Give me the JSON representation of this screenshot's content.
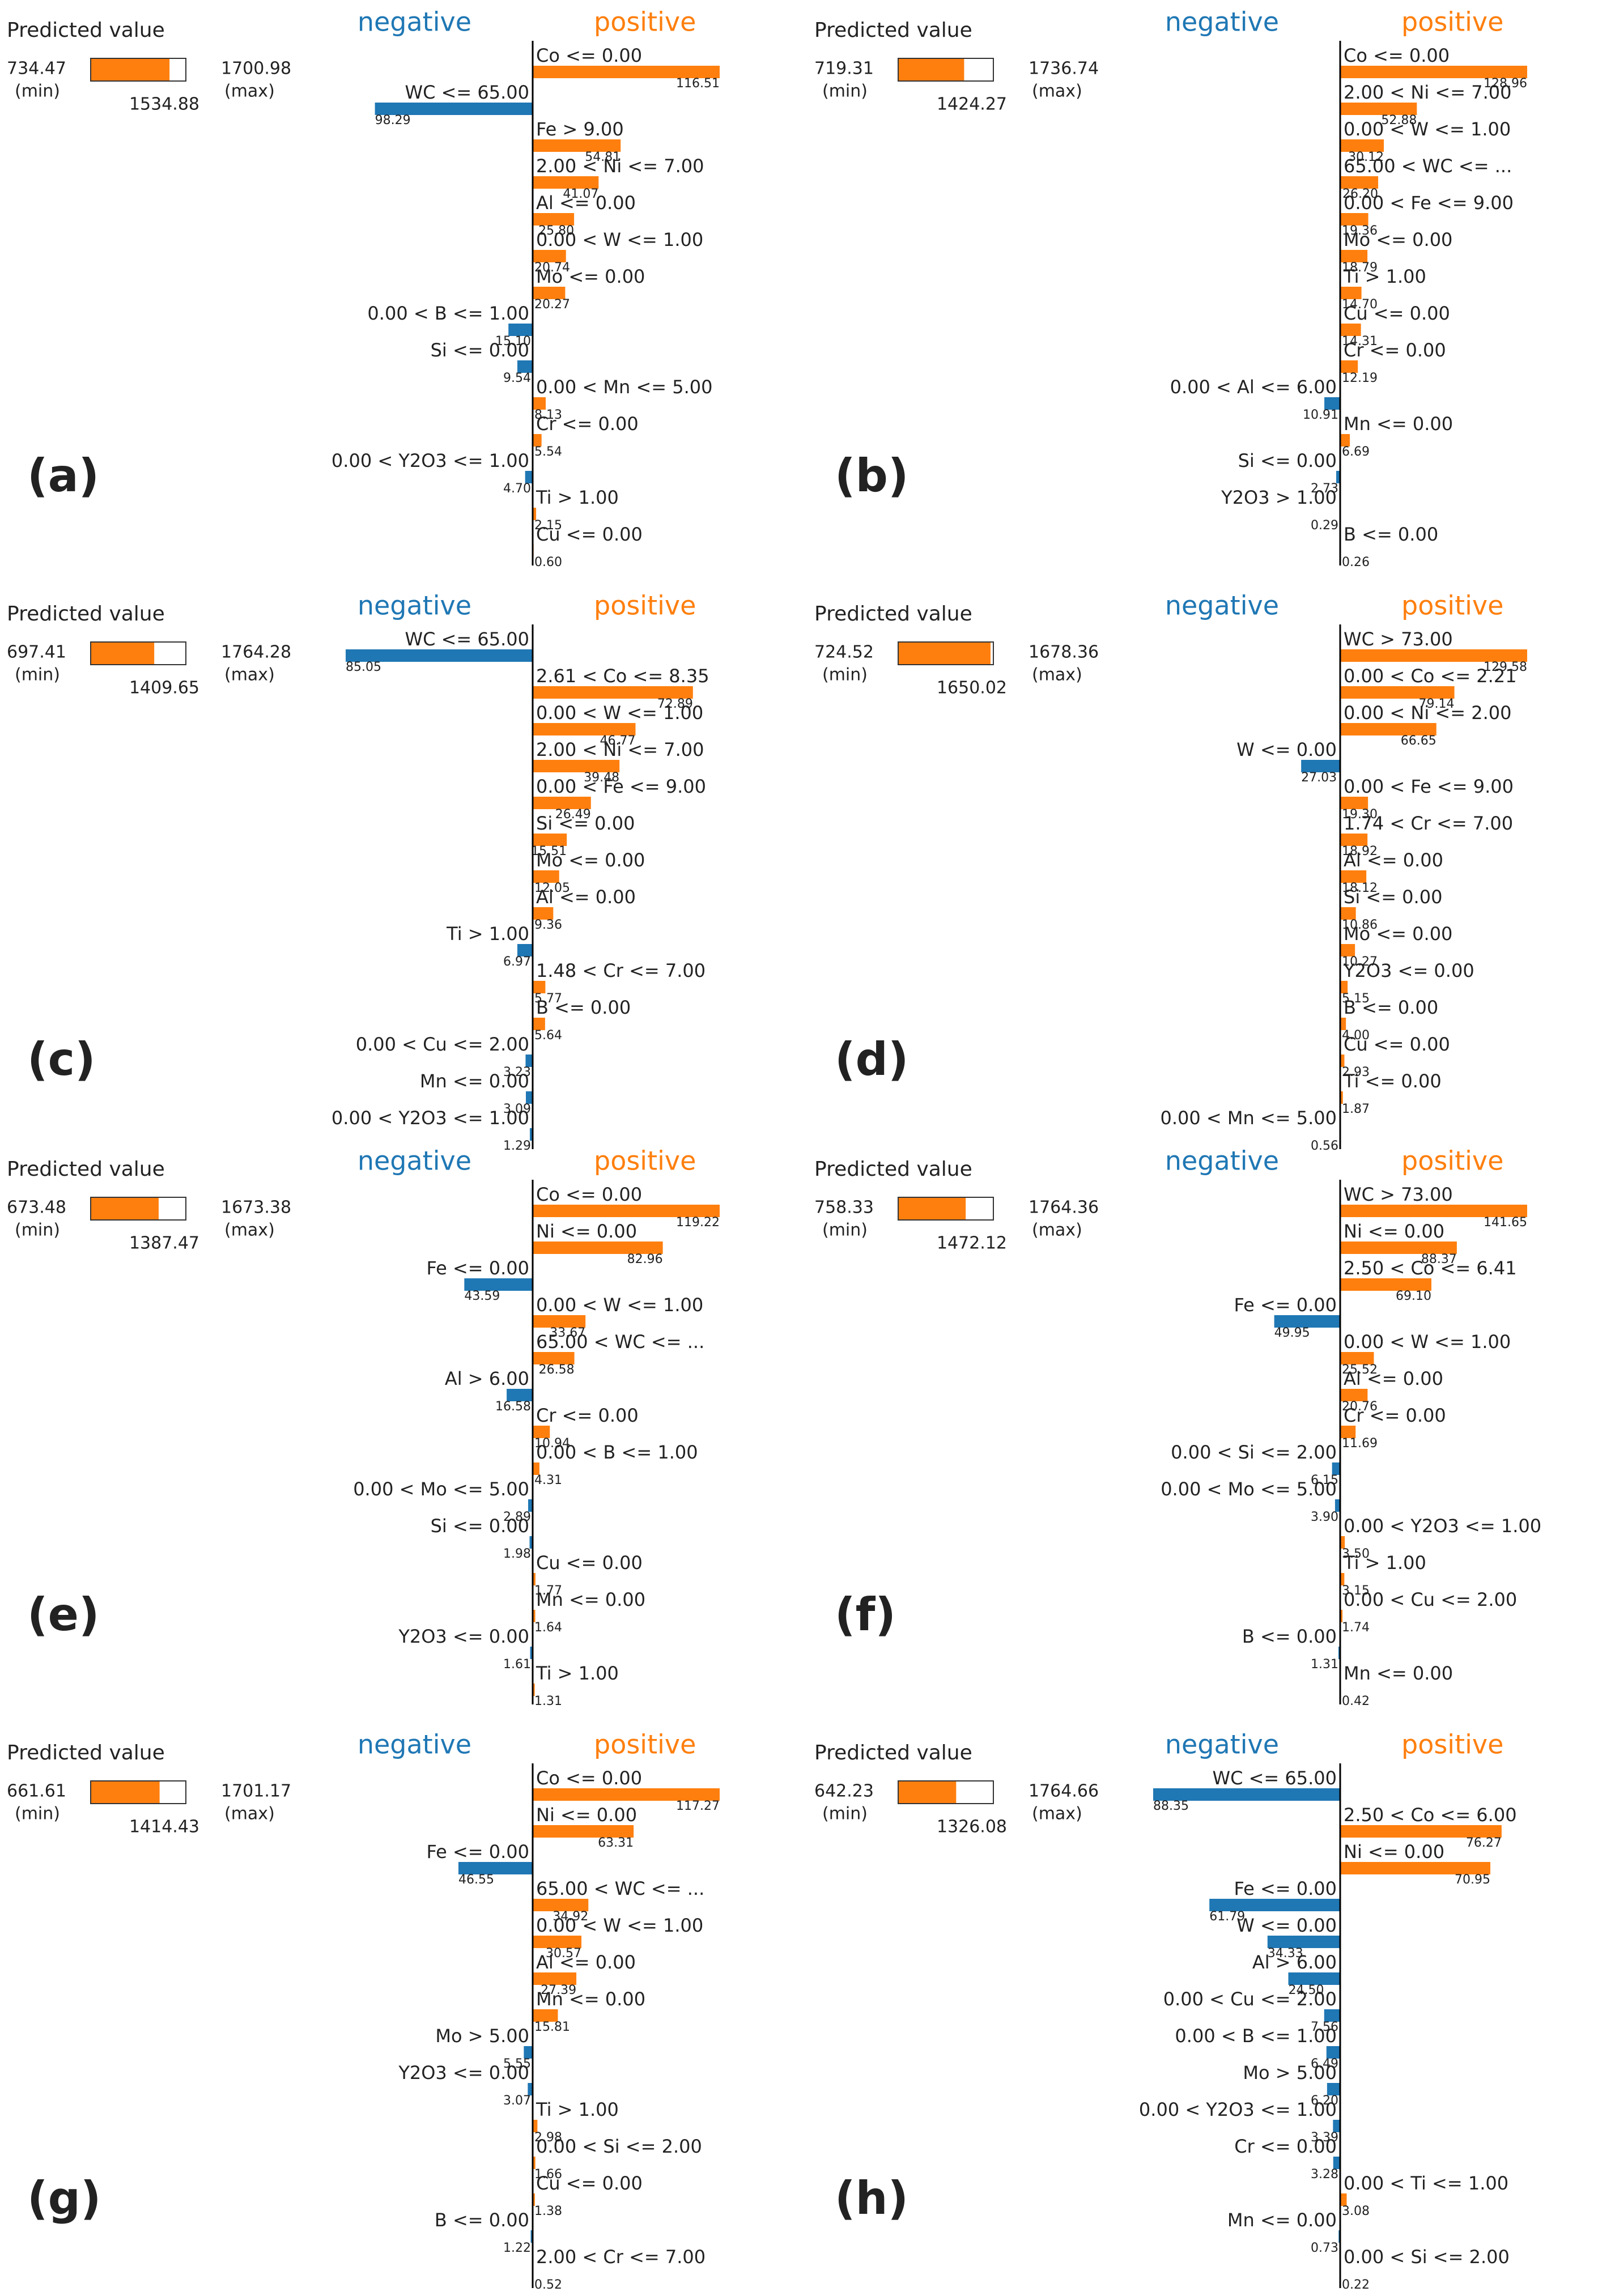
{
  "chart_data": [
    {
      "type": "bar",
      "panel_label": "(a)",
      "predicted": {
        "title": "Predicted value",
        "min": 734.47,
        "min_label": "(min)",
        "max": 1700.98,
        "max_label": "(max)",
        "value": 1534.88
      },
      "categories": [
        "Co <= 0.00",
        "WC <= 65.00",
        "Fe > 9.00",
        "2.00 < Ni <= 7.00",
        "Al <= 0.00",
        "0.00 < W <= 1.00",
        "Mo <= 0.00",
        "0.00 < B <= 1.00",
        "Si <= 0.00",
        "0.00 < Mn <= 5.00",
        "Cr <= 0.00",
        "0.00 < Y2O3 <= 1.00",
        "Ti > 1.00",
        "Cu <= 0.00"
      ],
      "series": [
        {
          "name": "negative",
          "color": "#1f77b4",
          "values": [
            null,
            98.29,
            null,
            null,
            null,
            null,
            null,
            15.1,
            9.54,
            null,
            null,
            4.7,
            null,
            null
          ],
          "value_labels": [
            null,
            "98.29",
            null,
            null,
            null,
            null,
            null,
            "15.10",
            "9.54",
            null,
            null,
            "4.70",
            null,
            null
          ]
        },
        {
          "name": "positive",
          "color": "#ff7f0e",
          "values": [
            116.51,
            null,
            54.81,
            41.07,
            25.8,
            20.74,
            20.27,
            null,
            null,
            8.13,
            5.54,
            null,
            2.15,
            0.6
          ],
          "value_labels": [
            "116.51",
            null,
            "54.81",
            "41.07",
            "25.80",
            "20.74",
            "20.27",
            null,
            null,
            "8.13",
            "5.54",
            null,
            "2.15",
            "0.60"
          ]
        }
      ]
    },
    {
      "type": "bar",
      "panel_label": "(b)",
      "predicted": {
        "title": "Predicted value",
        "min": 719.31,
        "min_label": "(min)",
        "max": 1736.74,
        "max_label": "(max)",
        "value": 1424.27
      },
      "categories": [
        "Co <= 0.00",
        "2.00 < Ni <= 7.00",
        "0.00 < W <= 1.00",
        "65.00 < WC <= ...",
        "0.00 < Fe <= 9.00",
        "Mo <= 0.00",
        "Ti > 1.00",
        "Cu <= 0.00",
        "Cr <= 0.00",
        "0.00 < Al <= 6.00",
        "Mn <= 0.00",
        "Si <= 0.00",
        "Y2O3 > 1.00",
        "B <= 0.00"
      ],
      "series": [
        {
          "name": "negative",
          "color": "#1f77b4",
          "values": [
            null,
            null,
            null,
            null,
            null,
            null,
            null,
            null,
            null,
            10.91,
            null,
            2.73,
            0.29,
            null
          ],
          "value_labels": [
            null,
            null,
            null,
            null,
            null,
            null,
            null,
            null,
            null,
            "10.91",
            null,
            "2.73",
            "0.29",
            null
          ]
        },
        {
          "name": "positive",
          "color": "#ff7f0e",
          "values": [
            128.96,
            52.88,
            30.12,
            26.2,
            19.36,
            18.79,
            14.7,
            14.31,
            12.19,
            null,
            6.69,
            null,
            null,
            0.26
          ],
          "value_labels": [
            "128.96",
            "52.88",
            "30.12",
            "26.20",
            "19.36",
            "18.79",
            "14.70",
            "14.31",
            "12.19",
            null,
            "6.69",
            null,
            null,
            "0.26"
          ]
        }
      ]
    },
    {
      "type": "bar",
      "panel_label": "(c)",
      "predicted": {
        "title": "Predicted value",
        "min": 697.41,
        "min_label": "(min)",
        "max": 1764.28,
        "max_label": "(max)",
        "value": 1409.65
      },
      "categories": [
        "WC <= 65.00",
        "2.61 < Co <= 8.35",
        "0.00 < W <= 1.00",
        "2.00 < Ni <= 7.00",
        "0.00 < Fe <= 9.00",
        "Si <= 0.00",
        "Mo <= 0.00",
        "Al <= 0.00",
        "Ti > 1.00",
        "1.48 < Cr <= 7.00",
        "B <= 0.00",
        "0.00 < Cu <= 2.00",
        "Mn <= 0.00",
        "0.00 < Y2O3 <= 1.00"
      ],
      "series": [
        {
          "name": "negative",
          "color": "#1f77b4",
          "values": [
            85.05,
            null,
            null,
            null,
            null,
            null,
            null,
            null,
            6.97,
            null,
            null,
            3.23,
            3.09,
            1.29
          ],
          "value_labels": [
            "85.05",
            null,
            null,
            null,
            null,
            null,
            null,
            null,
            "6.97",
            null,
            null,
            "3.23",
            "3.09",
            "1.29"
          ]
        },
        {
          "name": "positive",
          "color": "#ff7f0e",
          "values": [
            null,
            72.89,
            46.77,
            39.48,
            26.49,
            15.51,
            12.05,
            9.36,
            null,
            5.77,
            5.64,
            null,
            null,
            null
          ],
          "value_labels": [
            null,
            "72.89",
            "46.77",
            "39.48",
            "26.49",
            "15.51",
            "12.05",
            "9.36",
            null,
            "5.77",
            "5.64",
            null,
            null,
            null
          ]
        }
      ]
    },
    {
      "type": "bar",
      "panel_label": "(d)",
      "predicted": {
        "title": "Predicted value",
        "min": 724.52,
        "min_label": "(min)",
        "max": 1678.36,
        "max_label": "(max)",
        "value": 1650.02
      },
      "categories": [
        "WC > 73.00",
        "0.00 < Co <= 2.21",
        "0.00 < Ni <= 2.00",
        "W <= 0.00",
        "0.00 < Fe <= 9.00",
        "1.74 < Cr <= 7.00",
        "Al <= 0.00",
        "Si <= 0.00",
        "Mo <= 0.00",
        "Y2O3 <= 0.00",
        "B <= 0.00",
        "Cu <= 0.00",
        "Ti <= 0.00",
        "0.00 < Mn <= 5.00"
      ],
      "series": [
        {
          "name": "negative",
          "color": "#1f77b4",
          "values": [
            null,
            null,
            null,
            27.03,
            null,
            null,
            null,
            null,
            null,
            null,
            null,
            null,
            null,
            0.56
          ],
          "value_labels": [
            null,
            null,
            null,
            "27.03",
            null,
            null,
            null,
            null,
            null,
            null,
            null,
            null,
            null,
            "0.56"
          ]
        },
        {
          "name": "positive",
          "color": "#ff7f0e",
          "values": [
            129.58,
            79.14,
            66.65,
            null,
            19.3,
            18.92,
            18.12,
            10.86,
            10.27,
            5.15,
            4,
            2.93,
            1.87,
            null
          ],
          "value_labels": [
            "129.58",
            "79.14",
            "66.65",
            null,
            "19.30",
            "18.92",
            "18.12",
            "10.86",
            "10.27",
            "5.15",
            "4.00",
            "2.93",
            "1.87",
            null
          ]
        }
      ]
    },
    {
      "type": "bar",
      "panel_label": "(e)",
      "predicted": {
        "title": "Predicted value",
        "min": 673.48,
        "min_label": "(min)",
        "max": 1673.38,
        "max_label": "(max)",
        "value": 1387.47
      },
      "categories": [
        "Co <= 0.00",
        "Ni <= 0.00",
        "Fe <= 0.00",
        "0.00 < W <= 1.00",
        "65.00 < WC <= ...",
        "Al > 6.00",
        "Cr <= 0.00",
        "0.00 < B <= 1.00",
        "0.00 < Mo <= 5.00",
        "Si <= 0.00",
        "Cu <= 0.00",
        "Mn <= 0.00",
        "Y2O3 <= 0.00",
        "Ti > 1.00"
      ],
      "series": [
        {
          "name": "negative",
          "color": "#1f77b4",
          "values": [
            null,
            null,
            43.59,
            null,
            null,
            16.58,
            null,
            null,
            2.89,
            1.98,
            null,
            null,
            1.61,
            null
          ],
          "value_labels": [
            null,
            null,
            "43.59",
            null,
            null,
            "16.58",
            null,
            null,
            "2.89",
            "1.98",
            null,
            null,
            "1.61",
            null
          ]
        },
        {
          "name": "positive",
          "color": "#ff7f0e",
          "values": [
            119.22,
            82.96,
            null,
            33.67,
            26.58,
            null,
            10.94,
            4.31,
            null,
            null,
            1.77,
            1.64,
            null,
            1.31
          ],
          "value_labels": [
            "119.22",
            "82.96",
            null,
            "33.67",
            "26.58",
            null,
            "10.94",
            "4.31",
            null,
            null,
            "1.77",
            "1.64",
            null,
            "1.31"
          ]
        }
      ]
    },
    {
      "type": "bar",
      "panel_label": "(f)",
      "predicted": {
        "title": "Predicted value",
        "min": 758.33,
        "min_label": "(min)",
        "max": 1764.36,
        "max_label": "(max)",
        "value": 1472.12
      },
      "categories": [
        "WC > 73.00",
        "Ni <= 0.00",
        "2.50 < Co <= 6.41",
        "Fe <= 0.00",
        "0.00 < W <= 1.00",
        "Al <= 0.00",
        "Cr <= 0.00",
        "0.00 < Si <= 2.00",
        "0.00 < Mo <= 5.00",
        "0.00 < Y2O3 <= 1.00",
        "Ti > 1.00",
        "0.00 < Cu <= 2.00",
        "B <= 0.00",
        "Mn <= 0.00"
      ],
      "series": [
        {
          "name": "negative",
          "color": "#1f77b4",
          "values": [
            null,
            null,
            null,
            49.95,
            null,
            null,
            null,
            6.15,
            3.9,
            null,
            null,
            null,
            1.31,
            null
          ],
          "value_labels": [
            null,
            null,
            null,
            "49.95",
            null,
            null,
            null,
            "6.15",
            "3.90",
            null,
            null,
            null,
            "1.31",
            null
          ]
        },
        {
          "name": "positive",
          "color": "#ff7f0e",
          "values": [
            141.65,
            88.37,
            69.1,
            null,
            25.52,
            20.76,
            11.69,
            null,
            null,
            3.5,
            3.15,
            1.74,
            null,
            0.42
          ],
          "value_labels": [
            "141.65",
            "88.37",
            "69.10",
            null,
            "25.52",
            "20.76",
            "11.69",
            null,
            null,
            "3.50",
            "3.15",
            "1.74",
            null,
            "0.42"
          ]
        }
      ]
    },
    {
      "type": "bar",
      "panel_label": "(g)",
      "predicted": {
        "title": "Predicted value",
        "min": 661.61,
        "min_label": "(min)",
        "max": 1701.17,
        "max_label": "(max)",
        "value": 1414.43
      },
      "categories": [
        "Co <= 0.00",
        "Ni <= 0.00",
        "Fe <= 0.00",
        "65.00 < WC <= ...",
        "0.00 < W <= 1.00",
        "Al <= 0.00",
        "Mn <= 0.00",
        "Mo > 5.00",
        "Y2O3 <= 0.00",
        "Ti > 1.00",
        "0.00 < Si <= 2.00",
        "Cu <= 0.00",
        "B <= 0.00",
        "2.00 < Cr <= 7.00"
      ],
      "series": [
        {
          "name": "negative",
          "color": "#1f77b4",
          "values": [
            null,
            null,
            46.55,
            null,
            null,
            null,
            null,
            5.55,
            3.07,
            null,
            null,
            null,
            1.22,
            null
          ],
          "value_labels": [
            null,
            null,
            "46.55",
            null,
            null,
            null,
            null,
            "5.55",
            "3.07",
            null,
            null,
            null,
            "1.22",
            null
          ]
        },
        {
          "name": "positive",
          "color": "#ff7f0e",
          "values": [
            117.27,
            63.31,
            null,
            34.92,
            30.57,
            27.39,
            15.81,
            null,
            null,
            2.98,
            1.66,
            1.38,
            null,
            0.52
          ],
          "value_labels": [
            "117.27",
            "63.31",
            null,
            "34.92",
            "30.57",
            "27.39",
            "15.81",
            null,
            null,
            "2.98",
            "1.66",
            "1.38",
            null,
            "0.52"
          ]
        }
      ]
    },
    {
      "type": "bar",
      "panel_label": "(h)",
      "predicted": {
        "title": "Predicted value",
        "min": 642.23,
        "min_label": "(min)",
        "max": 1764.66,
        "max_label": "(max)",
        "value": 1326.08
      },
      "categories": [
        "WC <= 65.00",
        "2.50 < Co <= 6.00",
        "Ni <= 0.00",
        "Fe <= 0.00",
        "W <= 0.00",
        "Al > 6.00",
        "0.00 < Cu <= 2.00",
        "0.00 < B <= 1.00",
        "Mo > 5.00",
        "0.00 < Y2O3 <= 1.00",
        "Cr <= 0.00",
        "0.00 < Ti <= 1.00",
        "Mn <= 0.00",
        "0.00 < Si <= 2.00"
      ],
      "series": [
        {
          "name": "negative",
          "color": "#1f77b4",
          "values": [
            88.35,
            null,
            null,
            61.79,
            34.33,
            24.5,
            7.56,
            6.49,
            6.2,
            3.39,
            3.28,
            null,
            0.73,
            null
          ],
          "value_labels": [
            "88.35",
            null,
            null,
            "61.79",
            "34.33",
            "24.50",
            "7.56",
            "6.49",
            "6.20",
            "3.39",
            "3.28",
            null,
            "0.73",
            null
          ]
        },
        {
          "name": "positive",
          "color": "#ff7f0e",
          "values": [
            null,
            76.27,
            70.95,
            null,
            null,
            null,
            null,
            null,
            null,
            null,
            null,
            3.08,
            null,
            0.22
          ],
          "value_labels": [
            null,
            "76.27",
            "70.95",
            null,
            null,
            null,
            null,
            null,
            null,
            null,
            null,
            "3.08",
            null,
            "0.22"
          ]
        }
      ]
    }
  ]
}
